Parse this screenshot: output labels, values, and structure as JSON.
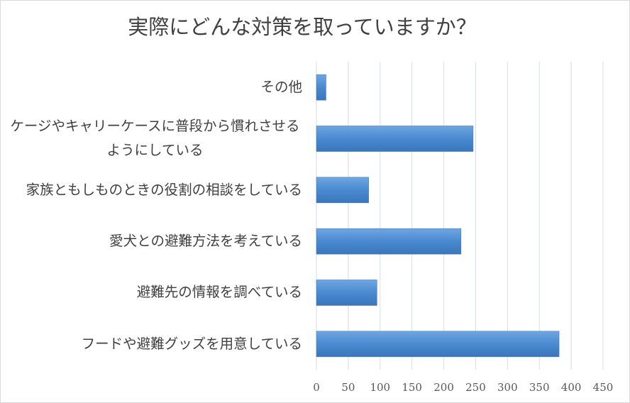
{
  "chart_data": {
    "type": "barh",
    "title": "実際にどんな対策を取っていますか？",
    "categories": [
      "その他",
      "ケージやキャリーケースに普段から慣れさせるようにしている",
      "家族ともしものときの役割の相談をしている",
      "愛犬との避難方法を考えている",
      "避難先の情報を調べている",
      "フードや避難グッズを用意している"
    ],
    "values": [
      15,
      246,
      82,
      227,
      95,
      381
    ],
    "color": "#4a8ad0",
    "xlim": [
      0,
      450
    ],
    "xticks": [
      0,
      50,
      100,
      150,
      200,
      250,
      300,
      350,
      400,
      450
    ],
    "grid": true
  }
}
